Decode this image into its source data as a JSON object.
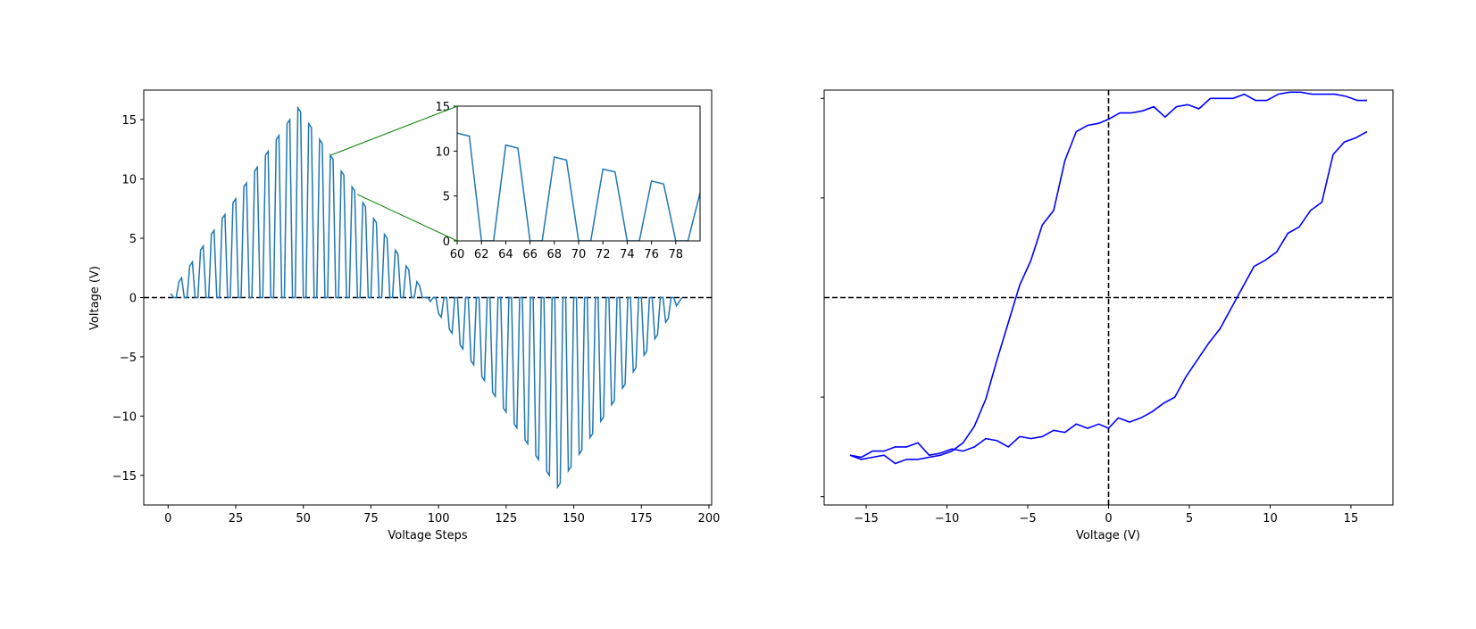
{
  "chart_data": [
    {
      "type": "line",
      "panel": "left",
      "title": "",
      "xlabel": "Voltage Steps",
      "ylabel": "Voltage (V)",
      "xlim": [
        -9,
        201
      ],
      "ylim": [
        -17.5,
        17.5
      ],
      "xticks": [
        0,
        25,
        50,
        75,
        100,
        125,
        150,
        175,
        200
      ],
      "yticks": [
        -15,
        -10,
        -5,
        0,
        5,
        10,
        15
      ],
      "grid": false,
      "legend": "none",
      "series": [
        {
          "description": "bipolar triangular pulse train: pulses of amplitude rising linearly to 16 V at step 48, falling to 0 at step 96, then negative down to -16 V at step 144, back to 0 at step 190; each pulse period 4 steps (2-step flat top, 2-step zero)",
          "color": "#1f77b4",
          "peak_step_positive": 48,
          "peak_value_positive": 16,
          "zero_crossing_step": 96,
          "peak_step_negative": 144,
          "peak_value_negative": -16,
          "end_step": 190,
          "pulse_period": 4
        }
      ],
      "reference_lines": [
        {
          "type": "hline",
          "y": 0,
          "style": "dashed",
          "color": "#000000"
        }
      ],
      "inset": {
        "xlim": [
          60,
          80
        ],
        "ylim": [
          0,
          15
        ],
        "xticks": [
          60,
          62,
          64,
          66,
          68,
          70,
          72,
          74,
          76,
          78
        ],
        "yticks": [
          0,
          5,
          10,
          15
        ],
        "connector_color": "#008000",
        "connected_points": [
          [
            60,
            12
          ],
          [
            70,
            8.7
          ]
        ]
      }
    },
    {
      "type": "line",
      "panel": "right",
      "title": "",
      "xlabel": "Voltage (V)",
      "ylabel": "",
      "xlim": [
        -17.6,
        17.6
      ],
      "ylim": [
        -1.0,
        1.0
      ],
      "xticks": [
        -15,
        -10,
        -5,
        0,
        5,
        10,
        15
      ],
      "ytick_labels_shown": false,
      "grid": false,
      "legend": "none",
      "reference_lines": [
        {
          "type": "hline",
          "y": 0,
          "style": "dashed",
          "color": "#000000"
        },
        {
          "type": "vline",
          "x": 0,
          "style": "dashed",
          "color": "#000000"
        }
      ],
      "series": [
        {
          "name": "",
          "color": "#0000ff",
          "branch": "upper (forward sweep ending at +16 V)",
          "x": [
            -16,
            -15.3,
            -14.6,
            -13.9,
            -13.2,
            -12.5,
            -11.8,
            -11.1,
            -10.4,
            -9.7,
            -9.0,
            -8.3,
            -7.6,
            -6.9,
            -6.2,
            -5.5,
            -4.8,
            -4.1,
            -3.4,
            -2.7,
            -2.0,
            -1.3,
            -0.6,
            0.0,
            0.7,
            1.4,
            2.1,
            2.8,
            3.5,
            4.2,
            4.9,
            5.6,
            6.3,
            7.0,
            7.7,
            8.4,
            9.1,
            9.8,
            10.5,
            11.2,
            11.9,
            12.6,
            13.3,
            14.0,
            14.7,
            15.4,
            16.0
          ],
          "y": [
            -0.76,
            -0.78,
            -0.77,
            -0.76,
            -0.8,
            -0.78,
            -0.78,
            -0.77,
            -0.76,
            -0.74,
            -0.7,
            -0.62,
            -0.49,
            -0.3,
            -0.12,
            0.06,
            0.18,
            0.35,
            0.42,
            0.66,
            0.8,
            0.83,
            0.84,
            0.86,
            0.89,
            0.89,
            0.9,
            0.92,
            0.87,
            0.92,
            0.93,
            0.91,
            0.96,
            0.96,
            0.96,
            0.98,
            0.95,
            0.95,
            0.98,
            0.99,
            0.99,
            0.98,
            0.98,
            0.98,
            0.97,
            0.95,
            0.95
          ],
          "note": "closed-loop hysteresis: branch A begins at lower-left, rises steeply near -6 V to the upper plateau"
        },
        {
          "name": "",
          "color": "#0000ff",
          "branch": "lower (reverse sweep ending at -16 V)",
          "x": [
            16.0,
            15.3,
            14.6,
            13.9,
            13.2,
            12.5,
            11.8,
            11.1,
            10.4,
            9.7,
            9.0,
            8.3,
            7.6,
            6.9,
            6.2,
            5.5,
            4.8,
            4.1,
            3.4,
            2.7,
            2.0,
            1.3,
            0.6,
            0.0,
            -0.6,
            -1.3,
            -2.0,
            -2.7,
            -3.4,
            -4.1,
            -4.8,
            -5.5,
            -6.2,
            -6.9,
            -7.6,
            -8.3,
            -9.0,
            -9.7,
            -10.4,
            -11.1,
            -11.8,
            -12.5,
            -13.2,
            -13.9,
            -14.6,
            -15.3,
            -16.0
          ],
          "y": [
            0.8,
            0.77,
            0.75,
            0.69,
            0.46,
            0.42,
            0.34,
            0.31,
            0.22,
            0.18,
            0.15,
            0.05,
            -0.05,
            -0.15,
            -0.22,
            -0.3,
            -0.38,
            -0.48,
            -0.51,
            -0.55,
            -0.58,
            -0.6,
            -0.58,
            -0.63,
            -0.61,
            -0.63,
            -0.61,
            -0.65,
            -0.64,
            -0.67,
            -0.68,
            -0.67,
            -0.72,
            -0.69,
            -0.68,
            -0.72,
            -0.74,
            -0.73,
            -0.75,
            -0.76,
            -0.7,
            -0.72,
            -0.72,
            -0.74,
            -0.74,
            -0.77,
            -0.76
          ],
          "note": "reverse branch rises steeply near +8 V"
        }
      ]
    }
  ]
}
